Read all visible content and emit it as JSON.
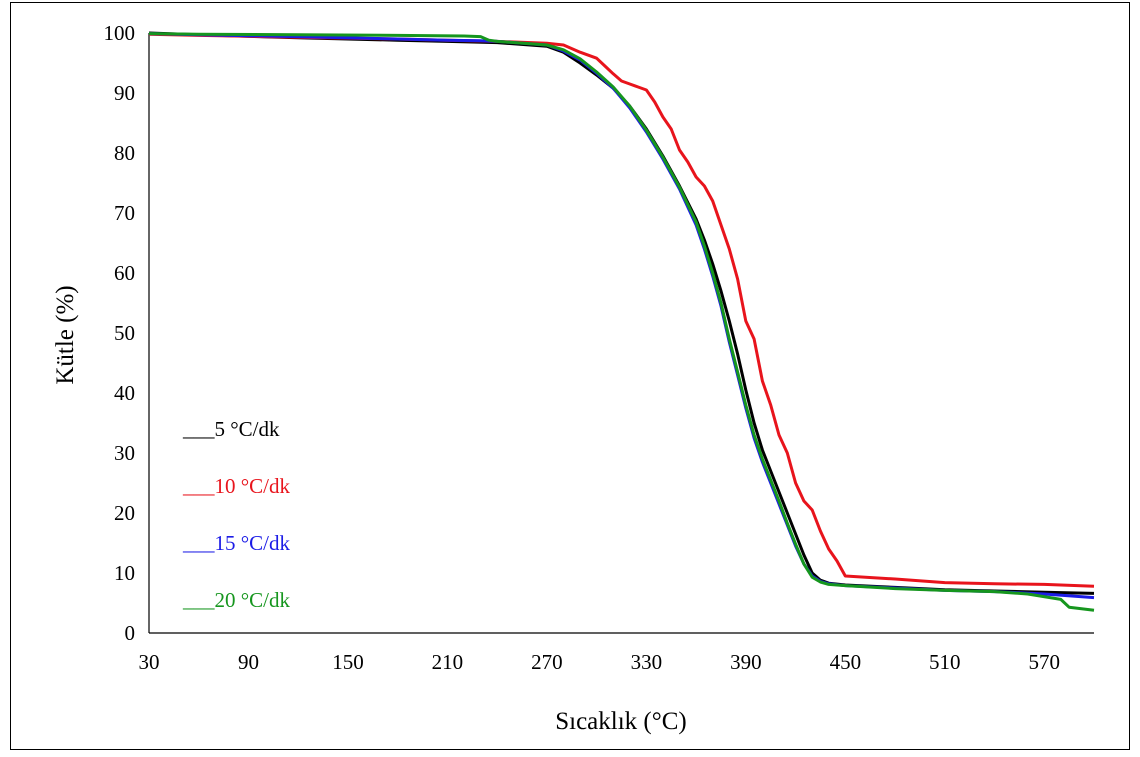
{
  "chart_data": {
    "type": "line",
    "xlabel": "Sıcaklık (°C)",
    "ylabel": "Kütle (%)",
    "xlim": [
      30,
      600
    ],
    "ylim": [
      0,
      100
    ],
    "x_ticks": [
      30,
      90,
      150,
      210,
      270,
      330,
      390,
      450,
      510,
      570
    ],
    "y_ticks": [
      0,
      10,
      20,
      30,
      40,
      50,
      60,
      70,
      80,
      90,
      100
    ],
    "grid": false,
    "legend_position": "left-middle",
    "series": [
      {
        "name": "5 °C/dk",
        "legend_label": "___5 °C/dk",
        "color": "#000000",
        "points": [
          [
            30,
            100
          ],
          [
            60,
            99.7
          ],
          [
            120,
            99.2
          ],
          [
            180,
            98.8
          ],
          [
            210,
            98.6
          ],
          [
            240,
            98.4
          ],
          [
            270,
            97.8
          ],
          [
            280,
            96.8
          ],
          [
            290,
            95
          ],
          [
            300,
            93
          ],
          [
            310,
            90.8
          ],
          [
            320,
            87.8
          ],
          [
            330,
            84
          ],
          [
            340,
            79.5
          ],
          [
            350,
            74.5
          ],
          [
            360,
            69
          ],
          [
            365,
            65.5
          ],
          [
            370,
            61.5
          ],
          [
            375,
            57
          ],
          [
            380,
            52
          ],
          [
            385,
            46.5
          ],
          [
            390,
            40.5
          ],
          [
            395,
            35
          ],
          [
            400,
            30.5
          ],
          [
            405,
            27
          ],
          [
            410,
            23.5
          ],
          [
            415,
            20
          ],
          [
            420,
            16.5
          ],
          [
            425,
            13
          ],
          [
            430,
            10
          ],
          [
            435,
            8.8
          ],
          [
            440,
            8.3
          ],
          [
            450,
            8
          ],
          [
            480,
            7.6
          ],
          [
            510,
            7.2
          ],
          [
            540,
            7
          ],
          [
            570,
            6.8
          ],
          [
            600,
            6.6
          ]
        ]
      },
      {
        "name": "10 °C/dk",
        "legend_label": "___10 °C/dk",
        "color": "#e8141c",
        "points": [
          [
            30,
            99.8
          ],
          [
            60,
            99.6
          ],
          [
            120,
            99.3
          ],
          [
            180,
            99
          ],
          [
            210,
            98.8
          ],
          [
            240,
            98.6
          ],
          [
            270,
            98.3
          ],
          [
            280,
            98
          ],
          [
            290,
            96.8
          ],
          [
            300,
            95.8
          ],
          [
            305,
            94.5
          ],
          [
            310,
            93.2
          ],
          [
            315,
            92
          ],
          [
            320,
            91.5
          ],
          [
            325,
            91
          ],
          [
            330,
            90.5
          ],
          [
            335,
            88.5
          ],
          [
            340,
            86
          ],
          [
            345,
            84
          ],
          [
            350,
            80.5
          ],
          [
            355,
            78.5
          ],
          [
            360,
            76
          ],
          [
            365,
            74.5
          ],
          [
            370,
            72
          ],
          [
            375,
            68
          ],
          [
            380,
            64
          ],
          [
            385,
            59
          ],
          [
            390,
            52
          ],
          [
            395,
            49
          ],
          [
            400,
            42
          ],
          [
            405,
            38
          ],
          [
            410,
            33
          ],
          [
            415,
            30
          ],
          [
            420,
            25
          ],
          [
            425,
            22
          ],
          [
            430,
            20.5
          ],
          [
            435,
            17
          ],
          [
            440,
            14
          ],
          [
            445,
            12
          ],
          [
            450,
            9.5
          ],
          [
            480,
            9
          ],
          [
            510,
            8.4
          ],
          [
            540,
            8.2
          ],
          [
            570,
            8.1
          ],
          [
            600,
            7.8
          ]
        ]
      },
      {
        "name": "15 °C/dk",
        "legend_label": "___15 °C/dk",
        "color": "#1c1ce6",
        "points": [
          [
            30,
            99.9
          ],
          [
            60,
            99.7
          ],
          [
            120,
            99.4
          ],
          [
            180,
            99
          ],
          [
            210,
            98.8
          ],
          [
            230,
            98.7
          ],
          [
            240,
            98.6
          ],
          [
            270,
            98
          ],
          [
            280,
            97
          ],
          [
            290,
            95.5
          ],
          [
            300,
            93.3
          ],
          [
            310,
            90.8
          ],
          [
            320,
            87.5
          ],
          [
            330,
            83.5
          ],
          [
            340,
            79
          ],
          [
            350,
            74
          ],
          [
            360,
            68
          ],
          [
            365,
            64
          ],
          [
            370,
            59.5
          ],
          [
            375,
            54.5
          ],
          [
            380,
            48.5
          ],
          [
            385,
            43
          ],
          [
            390,
            37.5
          ],
          [
            395,
            32.5
          ],
          [
            400,
            28.5
          ],
          [
            405,
            25
          ],
          [
            410,
            21.5
          ],
          [
            415,
            18
          ],
          [
            420,
            14.5
          ],
          [
            425,
            11.5
          ],
          [
            430,
            9.5
          ],
          [
            435,
            8.6
          ],
          [
            440,
            8.2
          ],
          [
            450,
            7.9
          ],
          [
            480,
            7.5
          ],
          [
            510,
            7.1
          ],
          [
            540,
            6.9
          ],
          [
            570,
            6.5
          ],
          [
            600,
            5.9
          ]
        ]
      },
      {
        "name": "20 °C/dk",
        "legend_label": "___20 °C/dk",
        "color": "#16961e",
        "points": [
          [
            30,
            99.9
          ],
          [
            60,
            99.8
          ],
          [
            120,
            99.7
          ],
          [
            180,
            99.6
          ],
          [
            220,
            99.5
          ],
          [
            230,
            99.4
          ],
          [
            235,
            98.8
          ],
          [
            240,
            98.6
          ],
          [
            270,
            98
          ],
          [
            280,
            97.2
          ],
          [
            290,
            95.7
          ],
          [
            300,
            93.5
          ],
          [
            310,
            91
          ],
          [
            320,
            87.8
          ],
          [
            330,
            83.8
          ],
          [
            340,
            79.3
          ],
          [
            350,
            74.3
          ],
          [
            360,
            68.5
          ],
          [
            365,
            64.5
          ],
          [
            370,
            60
          ],
          [
            375,
            55
          ],
          [
            380,
            49
          ],
          [
            385,
            43.5
          ],
          [
            390,
            38
          ],
          [
            395,
            33
          ],
          [
            400,
            29
          ],
          [
            405,
            25.5
          ],
          [
            410,
            22
          ],
          [
            415,
            18.3
          ],
          [
            420,
            14.8
          ],
          [
            425,
            11.5
          ],
          [
            430,
            9.3
          ],
          [
            435,
            8.5
          ],
          [
            440,
            8.1
          ],
          [
            450,
            7.9
          ],
          [
            480,
            7.4
          ],
          [
            510,
            7.1
          ],
          [
            540,
            6.9
          ],
          [
            560,
            6.5
          ],
          [
            580,
            5.6
          ],
          [
            585,
            4.3
          ],
          [
            600,
            3.8
          ]
        ]
      }
    ]
  }
}
